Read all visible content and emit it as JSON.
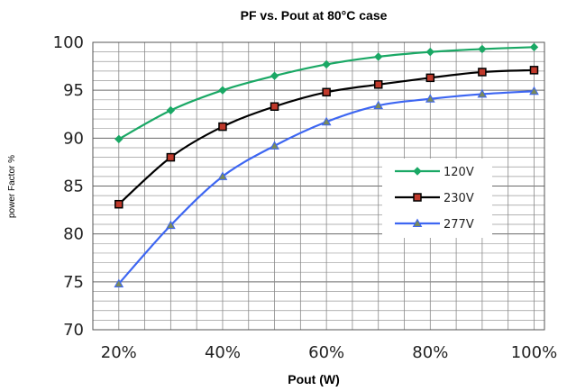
{
  "chart_data": {
    "type": "line",
    "title": "PF vs. Pout at 80°C case",
    "xlabel": "Pout (W)",
    "ylabel": "power Factor %",
    "x": [
      20,
      30,
      40,
      50,
      60,
      70,
      80,
      90,
      100
    ],
    "x_tick_labels": [
      "20%",
      "40%",
      "60%",
      "80%",
      "100%"
    ],
    "x_tick_values": [
      20,
      40,
      60,
      80,
      100
    ],
    "xlim": [
      15,
      102
    ],
    "ylim": [
      70,
      100
    ],
    "y_ticks": [
      70,
      75,
      80,
      85,
      90,
      95,
      100
    ],
    "grid": true,
    "legend_position": "right",
    "series": [
      {
        "name": "120V",
        "color": "#1aa865",
        "marker": "diamond",
        "values": [
          89.9,
          92.9,
          95.0,
          96.5,
          97.7,
          98.5,
          99.0,
          99.3,
          99.5
        ]
      },
      {
        "name": "230V",
        "color": "#000000",
        "marker": "square",
        "values": [
          83.1,
          88.0,
          91.2,
          93.3,
          94.8,
          95.6,
          96.3,
          96.9,
          97.1
        ]
      },
      {
        "name": "277V",
        "color": "#3d66f2",
        "marker": "triangle",
        "values": [
          74.8,
          80.9,
          86.0,
          89.2,
          91.7,
          93.4,
          94.1,
          94.6,
          94.9
        ]
      }
    ]
  }
}
